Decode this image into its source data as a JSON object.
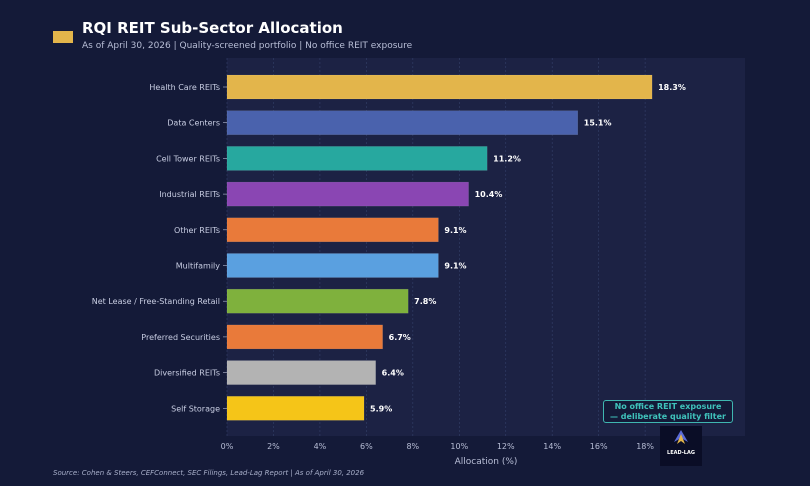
{
  "header": {
    "title": "RQI REIT Sub-Sector Allocation",
    "subtitle": "As of April 30, 2026 | Quality-screened portfolio | No office REIT exposure"
  },
  "footer": {
    "source": "Source: Cohen & Steers, CEFConnect, SEC Filings, Lead-Lag Report | As of April 30, 2026"
  },
  "annotation": {
    "line1": "No office REIT exposure",
    "line2": "— deliberate quality filter"
  },
  "logo": {
    "text": "LEAD-LAG",
    "icon": "lead-lag-logo-icon"
  },
  "colors": {
    "background": "#141a38",
    "plot_background": "#1c2244",
    "accent": "#e3b54b",
    "annotation": "#3fb6b0"
  },
  "chart_data": {
    "type": "bar",
    "orientation": "horizontal",
    "title": "RQI REIT Sub-Sector Allocation",
    "xlabel": "Allocation (%)",
    "ylabel": "",
    "xlim": [
      0,
      22.3
    ],
    "xticks": [
      0,
      2,
      4,
      6,
      8,
      10,
      12,
      14,
      16,
      18
    ],
    "xtick_labels": [
      "0%",
      "2%",
      "4%",
      "6%",
      "8%",
      "10%",
      "12%",
      "14%",
      "16%",
      "18%"
    ],
    "grid": true,
    "categories": [
      "Health Care REITs",
      "Data Centers",
      "Cell Tower REITs",
      "Industrial REITs",
      "Other REITs",
      "Multifamily",
      "Net Lease / Free-Standing Retail",
      "Preferred Securities",
      "Diversified REITs",
      "Self Storage"
    ],
    "values": [
      18.3,
      15.1,
      11.2,
      10.4,
      9.1,
      9.1,
      7.8,
      6.7,
      6.4,
      5.9
    ],
    "value_labels": [
      "18.3%",
      "15.1%",
      "11.2%",
      "10.4%",
      "9.1%",
      "9.1%",
      "7.8%",
      "6.7%",
      "6.4%",
      "5.9%"
    ],
    "bar_colors": [
      "#e3b54b",
      "#4a62ad",
      "#27a89f",
      "#8a46b3",
      "#e97a3a",
      "#5aa0e0",
      "#7fb13d",
      "#e97a3a",
      "#b3b3b3",
      "#f5c518"
    ]
  }
}
